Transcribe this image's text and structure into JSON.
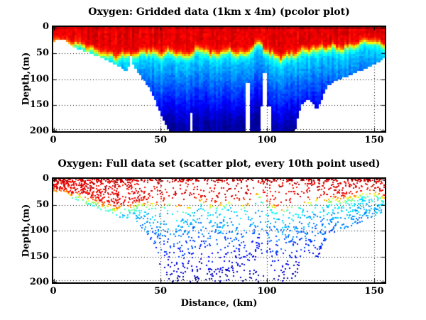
{
  "figure": {
    "background": "#ffffff",
    "frame_color": "#000000",
    "grid_style": "dotted",
    "grid_color": "#000000",
    "font_style": "bold serif"
  },
  "chart_data": [
    {
      "type": "heatmap",
      "title": "Oxygen: Gridded data (1km x 4m) (pcolor plot)",
      "xlabel": "",
      "ylabel": "Depth,(m)",
      "xlim": [
        0,
        155
      ],
      "ylim": [
        0,
        200
      ],
      "y_axis_reversed": true,
      "xticks": [
        0,
        50,
        100,
        150
      ],
      "yticks": [
        0,
        50,
        100,
        150,
        200
      ],
      "grid": true,
      "colormap": "jet",
      "colormap_meaning": "red = high oxygen near surface, blue = low oxygen at depth, white = no data / seafloor",
      "cell_size": {
        "km": 1,
        "m": 4
      },
      "bathymetry_profile": {
        "km": [
          0,
          2,
          5,
          7,
          10,
          14,
          18,
          22,
          26,
          30,
          33,
          35,
          36.5,
          38,
          40,
          43,
          46,
          49,
          52,
          54.5,
          113,
          116,
          118.5,
          121,
          123,
          125.5,
          128,
          131,
          135,
          139,
          143,
          147,
          150,
          153,
          155
        ],
        "depth_m": [
          27,
          25,
          24,
          31,
          40,
          46,
          52,
          58,
          65,
          73,
          81,
          85,
          56,
          78,
          90,
          107,
          128,
          155,
          185,
          203,
          203,
          150,
          139,
          146,
          158,
          138,
          115,
          105,
          98,
          92,
          85,
          78,
          72,
          66,
          58
        ]
      },
      "oxycline_profile": {
        "km": [
          0,
          10,
          20,
          30,
          36,
          40,
          45,
          50,
          55,
          58,
          62,
          66,
          70,
          74,
          78,
          82,
          86,
          90,
          93,
          96,
          99,
          103,
          107,
          111,
          115,
          119,
          123,
          127,
          131,
          135,
          139,
          143,
          147,
          151,
          155
        ],
        "depth_m": [
          24,
          34,
          47,
          58,
          56,
          53,
          49,
          52,
          46,
          53,
          60,
          49,
          45,
          55,
          49,
          46,
          52,
          55,
          45,
          31,
          46,
          55,
          60,
          54,
          50,
          48,
          44,
          43,
          39,
          41,
          37,
          33,
          30,
          32,
          38
        ]
      },
      "data_gaps": [
        {
          "km_range": [
            63.6,
            64.8
          ],
          "below_depth_m": 162
        },
        {
          "km_range": [
            90.2,
            91.6
          ],
          "below_depth_m": 108
        },
        {
          "km_range": [
            96.8,
            102.3
          ],
          "below_depth_m": 150
        },
        {
          "km_range": [
            98.2,
            99.6
          ],
          "below_depth_m": 88
        }
      ]
    },
    {
      "type": "scatter",
      "title": "Oxygen: Full data set (scatter plot, every 10th point used)",
      "xlabel": "Distance, (km)",
      "ylabel": "Depth,(m)",
      "xlim": [
        0,
        155
      ],
      "ylim": [
        0,
        200
      ],
      "y_axis_reversed": true,
      "xticks": [
        0,
        50,
        100,
        150
      ],
      "yticks": [
        0,
        50,
        100,
        150,
        200
      ],
      "grid": true,
      "colormap": "jet",
      "marker": "square",
      "marker_px": 2,
      "n_points": 2100,
      "n_surface_points": 170,
      "seed": 11,
      "uses_profiles_from_gridded_plot": true
    }
  ]
}
